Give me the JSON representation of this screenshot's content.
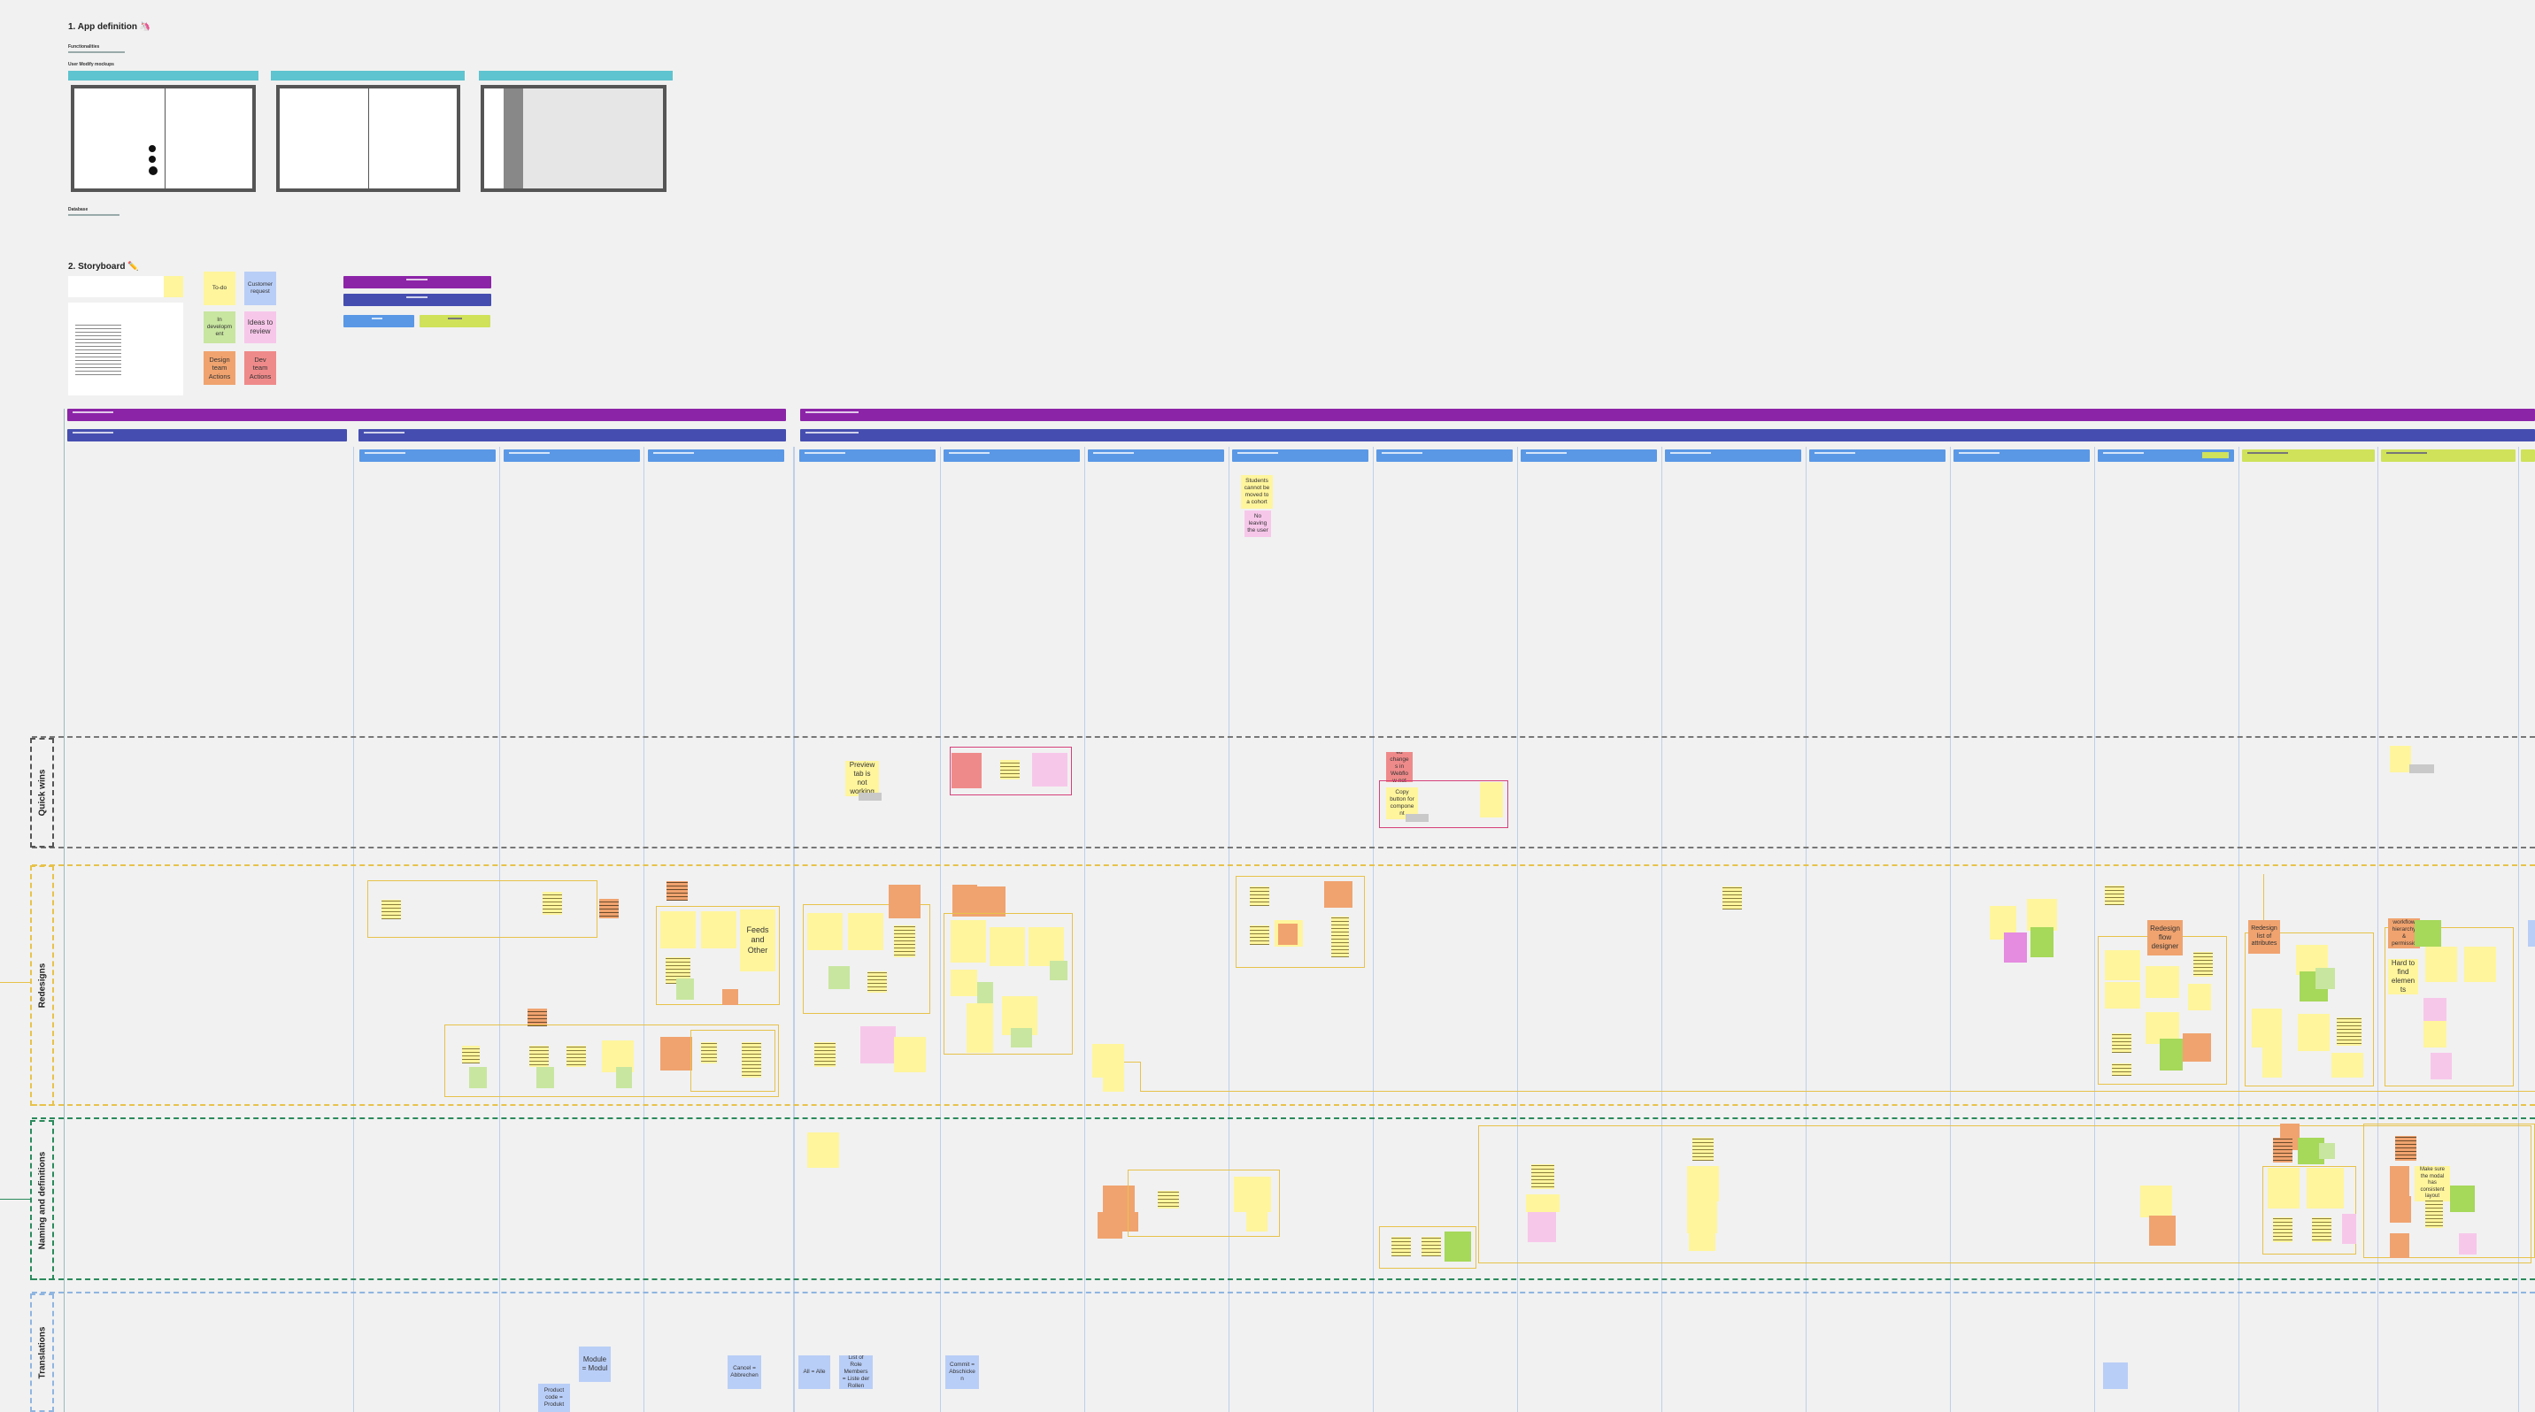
{
  "app_definition": {
    "title": "1. App definition 🦄",
    "functionalities_label": "Functionalities",
    "mockups_label": "User Modify mockups",
    "database_label": "Database"
  },
  "storyboard": {
    "title": "2. Storyboard ✏️"
  },
  "legend": {
    "items": [
      {
        "label": "To-do",
        "color": "#fff59d"
      },
      {
        "label": "Customer request",
        "color": "#b9cef7"
      },
      {
        "label": "In development",
        "color": "#c8e6a0"
      },
      {
        "label": "Ideas to review",
        "color": "#f7c7ea"
      },
      {
        "label": "Design team Actions",
        "color": "#f0a36f"
      },
      {
        "label": "Dev team Actions",
        "color": "#ef8a8a"
      }
    ]
  },
  "lanes": [
    {
      "label": "Quick wins",
      "color": "#555555"
    },
    {
      "label": "Redesigns",
      "color": "#e7c24a"
    },
    {
      "label": "Naming and definitions",
      "color": "#2a8a5c"
    },
    {
      "label": "Translations",
      "color": "#8fb5e0"
    }
  ],
  "notes": {
    "q1": "Preview tab is not working",
    "q2": "Translated changes in Webflow not applied",
    "q3": "Copy button for component",
    "c1": "Students cannot be moved to a cohort",
    "c2": "No leaving the user",
    "r1": "Feeds and Other",
    "r2": "Redesign flow designer",
    "r3": "Redesign list of attributes",
    "r4": "Redesign workflow hierarchy & permissions",
    "r5": "Hard to find elements",
    "r6": "Make sure the modal has consistent layout",
    "t1": "Module = Modul",
    "t2": "Product code = Produkt",
    "t3": "Cancel = Abbrechen",
    "t4": "All = Alle",
    "t5": "List of Role Members = Liste der Rollen",
    "t6": "Commit = Abschicken"
  }
}
